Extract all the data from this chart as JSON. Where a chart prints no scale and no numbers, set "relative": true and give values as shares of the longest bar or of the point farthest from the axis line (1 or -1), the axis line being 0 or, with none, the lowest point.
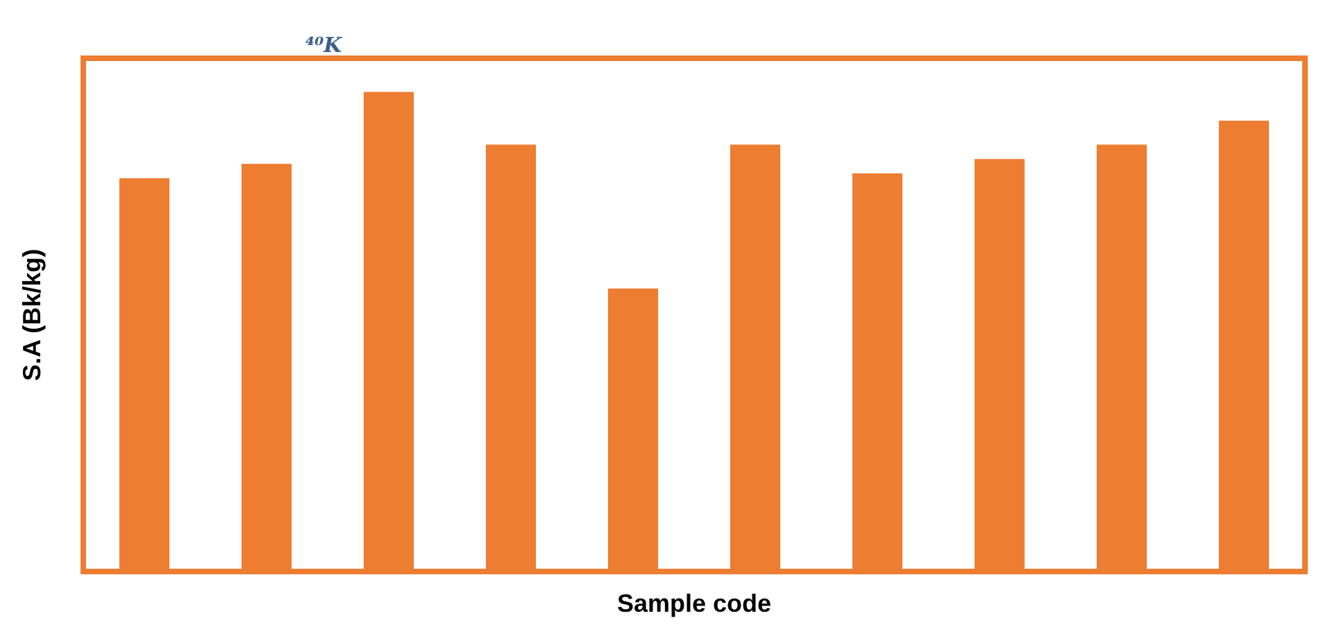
{
  "chart_data": {
    "type": "bar",
    "title": "⁴⁰K",
    "xlabel": "Sample code",
    "ylabel": "S.A (Bk/kg)",
    "relative": true,
    "categories": [
      null,
      null,
      null,
      null,
      null,
      null,
      null,
      null,
      null,
      null
    ],
    "values": [
      0.82,
      0.85,
      1,
      0.89,
      0.59,
      0.89,
      0.83,
      0.86,
      0.89,
      0.94
    ],
    "color": "#ed7d31"
  }
}
